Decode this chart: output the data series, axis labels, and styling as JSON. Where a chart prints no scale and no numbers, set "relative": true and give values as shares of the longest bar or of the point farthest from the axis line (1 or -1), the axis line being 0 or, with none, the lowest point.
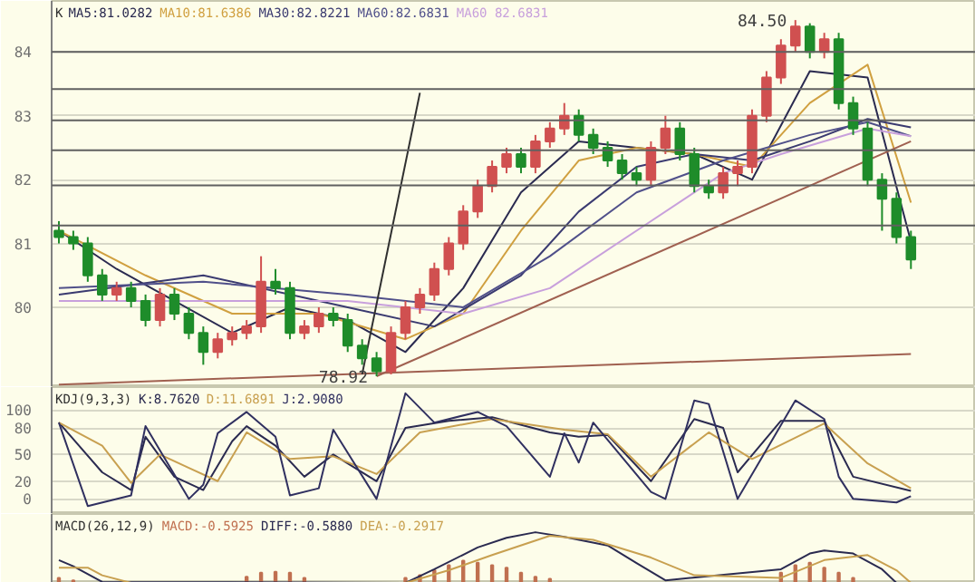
{
  "chart_data": [
    {
      "type": "candlestick",
      "title": "K",
      "categories": [
        null,
        null,
        null,
        null,
        null,
        null,
        null,
        null,
        null,
        null,
        null,
        null,
        null,
        null,
        null,
        null,
        null,
        null,
        null,
        null,
        null,
        null,
        null,
        null,
        null,
        null,
        null,
        null,
        null,
        null,
        null,
        null,
        null,
        null,
        null,
        null,
        null,
        null,
        null,
        null,
        null,
        null,
        null,
        null,
        null,
        null,
        null,
        null,
        null,
        null,
        null,
        null,
        null,
        null,
        null,
        null,
        null,
        null,
        null,
        null
      ],
      "ohlc": [
        [
          81.2,
          81.35,
          81.0,
          81.1
        ],
        [
          81.1,
          81.2,
          80.9,
          81.0
        ],
        [
          81.0,
          81.1,
          80.4,
          80.5
        ],
        [
          80.5,
          80.6,
          80.1,
          80.2
        ],
        [
          80.2,
          80.4,
          80.1,
          80.3
        ],
        [
          80.3,
          80.4,
          80.0,
          80.1
        ],
        [
          80.1,
          80.2,
          79.7,
          79.8
        ],
        [
          79.8,
          80.3,
          79.7,
          80.2
        ],
        [
          80.2,
          80.3,
          79.8,
          79.9
        ],
        [
          79.9,
          80.0,
          79.5,
          79.6
        ],
        [
          79.6,
          79.7,
          79.1,
          79.3
        ],
        [
          79.3,
          79.6,
          79.2,
          79.5
        ],
        [
          79.5,
          79.7,
          79.4,
          79.6
        ],
        [
          79.6,
          79.8,
          79.5,
          79.7
        ],
        [
          79.7,
          80.8,
          79.6,
          80.4
        ],
        [
          80.4,
          80.6,
          80.2,
          80.3
        ],
        [
          80.3,
          80.4,
          79.5,
          79.6
        ],
        [
          79.6,
          79.8,
          79.5,
          79.7
        ],
        [
          79.7,
          80.0,
          79.6,
          79.9
        ],
        [
          79.9,
          80.0,
          79.7,
          79.8
        ],
        [
          79.8,
          79.9,
          79.3,
          79.4
        ],
        [
          79.4,
          79.5,
          79.1,
          79.2
        ],
        [
          79.2,
          79.3,
          78.92,
          79.0
        ],
        [
          79.0,
          79.7,
          78.95,
          79.6
        ],
        [
          79.6,
          80.1,
          79.5,
          80.0
        ],
        [
          80.0,
          80.3,
          79.9,
          80.2
        ],
        [
          80.2,
          80.7,
          80.1,
          80.6
        ],
        [
          80.6,
          81.1,
          80.5,
          81.0
        ],
        [
          81.0,
          81.6,
          80.9,
          81.5
        ],
        [
          81.5,
          82.0,
          81.4,
          81.9
        ],
        [
          81.9,
          82.3,
          81.8,
          82.2
        ],
        [
          82.2,
          82.5,
          82.1,
          82.4
        ],
        [
          82.4,
          82.5,
          82.1,
          82.2
        ],
        [
          82.2,
          82.7,
          82.1,
          82.6
        ],
        [
          82.6,
          82.9,
          82.5,
          82.8
        ],
        [
          82.8,
          83.2,
          82.7,
          83.0
        ],
        [
          83.0,
          83.1,
          82.6,
          82.7
        ],
        [
          82.7,
          82.8,
          82.4,
          82.5
        ],
        [
          82.5,
          82.6,
          82.2,
          82.3
        ],
        [
          82.3,
          82.4,
          82.0,
          82.1
        ],
        [
          82.1,
          82.2,
          81.9,
          82.0
        ],
        [
          82.0,
          82.6,
          81.9,
          82.5
        ],
        [
          82.5,
          83.0,
          82.4,
          82.8
        ],
        [
          82.8,
          82.9,
          82.3,
          82.4
        ],
        [
          82.4,
          82.5,
          81.8,
          81.9
        ],
        [
          81.9,
          82.0,
          81.7,
          81.8
        ],
        [
          81.8,
          82.2,
          81.7,
          82.1
        ],
        [
          82.1,
          82.3,
          81.9,
          82.2
        ],
        [
          82.2,
          83.1,
          82.1,
          83.0
        ],
        [
          83.0,
          83.7,
          82.9,
          83.6
        ],
        [
          83.6,
          84.2,
          83.5,
          84.1
        ],
        [
          84.1,
          84.5,
          84.0,
          84.4
        ],
        [
          84.4,
          84.45,
          83.9,
          84.0
        ],
        [
          84.0,
          84.3,
          83.9,
          84.2
        ],
        [
          84.2,
          84.3,
          83.1,
          83.2
        ],
        [
          83.2,
          83.3,
          82.7,
          82.8
        ],
        [
          82.8,
          82.9,
          81.9,
          82.0
        ],
        [
          82.0,
          82.1,
          81.2,
          81.7
        ],
        [
          81.7,
          81.8,
          81.0,
          81.1
        ],
        [
          81.1,
          81.2,
          80.6,
          80.75
        ]
      ],
      "colors": [
        "#1e8c2a",
        "#1e8c2a",
        "#1e8c2a",
        "#1e8c2a",
        "#d05050",
        "#1e8c2a",
        "#1e8c2a",
        "#d05050",
        "#1e8c2a",
        "#1e8c2a",
        "#1e8c2a",
        "#d05050",
        "#d05050",
        "#d05050",
        "#d05050",
        "#1e8c2a",
        "#1e8c2a",
        "#d05050",
        "#d05050",
        "#1e8c2a",
        "#1e8c2a",
        "#1e8c2a",
        "#1e8c2a",
        "#d05050",
        "#d05050",
        "#d05050",
        "#d05050",
        "#d05050",
        "#d05050",
        "#d05050",
        "#d05050",
        "#d05050",
        "#1e8c2a",
        "#d05050",
        "#d05050",
        "#d05050",
        "#1e8c2a",
        "#1e8c2a",
        "#1e8c2a",
        "#1e8c2a",
        "#1e8c2a",
        "#d05050",
        "#d05050",
        "#1e8c2a",
        "#1e8c2a",
        "#1e8c2a",
        "#d05050",
        "#d05050",
        "#d05050",
        "#d05050",
        "#d05050",
        "#d05050",
        "#1e8c2a",
        "#d05050",
        "#1e8c2a",
        "#1e8c2a",
        "#1e8c2a",
        "#1e8c2a",
        "#1e8c2a",
        "#1e8c2a"
      ],
      "series": [
        {
          "type": "line",
          "name": "MA5:81.0282",
          "color": "#2a2a50",
          "values": [
            81.2,
            null,
            null,
            null,
            80.6,
            null,
            null,
            null,
            80.1,
            null,
            null,
            null,
            79.6,
            null,
            null,
            null,
            80.0,
            null,
            null,
            null,
            79.8,
            null,
            null,
            null,
            79.3,
            null,
            null,
            null,
            80.3,
            null,
            null,
            null,
            81.8,
            null,
            null,
            null,
            82.6,
            null,
            null,
            null,
            82.5,
            null,
            null,
            null,
            82.4,
            null,
            null,
            null,
            82.0,
            null,
            null,
            null,
            83.7,
            null,
            null,
            null,
            83.6,
            null,
            null,
            81.03
          ]
        },
        {
          "type": "line",
          "name": "MA10:81.6386",
          "color": "#d0a040",
          "values": [
            81.2,
            null,
            null,
            null,
            null,
            null,
            80.5,
            null,
            null,
            null,
            null,
            null,
            79.9,
            null,
            null,
            null,
            null,
            null,
            79.9,
            null,
            null,
            null,
            null,
            null,
            79.5,
            null,
            null,
            null,
            79.9,
            null,
            null,
            null,
            81.2,
            null,
            null,
            null,
            82.3,
            null,
            null,
            null,
            82.5,
            null,
            null,
            null,
            82.4,
            null,
            null,
            null,
            82.2,
            null,
            null,
            null,
            83.2,
            null,
            null,
            null,
            83.8,
            null,
            null,
            81.64
          ]
        },
        {
          "type": "line",
          "name": "MA30:82.8221",
          "color": "#3a3a70",
          "values": [
            80.2,
            null,
            null,
            null,
            null,
            null,
            null,
            null,
            null,
            null,
            80.5,
            null,
            null,
            null,
            null,
            null,
            null,
            null,
            null,
            null,
            80.0,
            null,
            null,
            null,
            null,
            null,
            79.7,
            null,
            null,
            null,
            null,
            null,
            80.5,
            null,
            null,
            null,
            81.5,
            null,
            null,
            null,
            82.2,
            null,
            null,
            null,
            82.4,
            null,
            null,
            null,
            82.3,
            null,
            null,
            null,
            82.6,
            null,
            null,
            null,
            82.95,
            null,
            null,
            82.82
          ]
        },
        {
          "type": "line",
          "name": "MA60:82.6831",
          "color": "#50508a",
          "values": [
            80.3,
            null,
            null,
            null,
            null,
            null,
            null,
            null,
            null,
            null,
            80.4,
            null,
            null,
            null,
            null,
            null,
            null,
            null,
            null,
            null,
            80.2,
            null,
            null,
            null,
            null,
            null,
            null,
            null,
            80.0,
            null,
            null,
            null,
            null,
            null,
            80.8,
            null,
            null,
            null,
            null,
            null,
            81.8,
            null,
            null,
            null,
            null,
            null,
            82.3,
            null,
            null,
            null,
            null,
            null,
            82.7,
            null,
            null,
            null,
            82.9,
            null,
            null,
            82.68
          ]
        },
        {
          "type": "line",
          "name": "MA60 82.6831",
          "color": "#c8a0dc",
          "values": [
            80.1,
            null,
            null,
            null,
            null,
            null,
            null,
            null,
            null,
            null,
            80.1,
            null,
            null,
            null,
            null,
            null,
            null,
            null,
            null,
            null,
            80.1,
            null,
            null,
            null,
            null,
            null,
            null,
            null,
            79.9,
            null,
            null,
            null,
            null,
            null,
            80.3,
            null,
            null,
            null,
            null,
            null,
            81.2,
            null,
            null,
            null,
            null,
            null,
            82.1,
            null,
            null,
            null,
            82.4,
            null,
            null,
            null,
            null,
            null,
            82.8,
            null,
            null,
            82.68
          ]
        },
        {
          "type": "line",
          "color": "#a06050",
          "values": [
            null,
            null,
            null,
            null,
            null,
            null,
            null,
            null,
            null,
            null,
            null,
            null,
            null,
            null,
            null,
            null,
            null,
            null,
            null,
            null,
            null,
            null,
            78.92,
            null,
            null,
            null,
            null,
            null,
            null,
            null,
            null,
            null,
            null,
            null,
            null,
            null,
            null,
            null,
            null,
            null,
            null,
            null,
            null,
            null,
            null,
            null,
            null,
            null,
            null,
            null,
            null,
            null,
            null,
            null,
            null,
            null,
            null,
            null,
            null,
            82.6
          ]
        },
        {
          "type": "line",
          "color": "#a06050",
          "values": [
            78.79,
            null,
            null,
            null,
            null,
            null,
            null,
            null,
            null,
            null,
            null,
            null,
            null,
            null,
            null,
            null,
            null,
            null,
            null,
            null,
            null,
            null,
            null,
            null,
            null,
            null,
            null,
            null,
            null,
            null,
            null,
            null,
            null,
            null,
            null,
            null,
            null,
            null,
            null,
            null,
            null,
            null,
            null,
            null,
            null,
            null,
            null,
            null,
            null,
            null,
            null,
            null,
            null,
            null,
            null,
            null,
            null,
            null,
            null,
            79.27
          ]
        },
        {
          "type": "line",
          "color": "#303030",
          "values": [
            null,
            null,
            null,
            null,
            null,
            null,
            null,
            null,
            null,
            null,
            null,
            null,
            null,
            null,
            null,
            null,
            null,
            null,
            null,
            null,
            null,
            78.95,
            null,
            null,
            null,
            83.36,
            null,
            null,
            null,
            null,
            null,
            null,
            null,
            null,
            null,
            null,
            null,
            null,
            null,
            null,
            null,
            null,
            null,
            null,
            null,
            null,
            null,
            null,
            null,
            null,
            null,
            null,
            null,
            null,
            null,
            null,
            null,
            null,
            null,
            null
          ]
        }
      ],
      "ylim": [
        78.75,
        84.8
      ],
      "yticks": [
        80,
        81,
        82,
        83,
        84
      ],
      "grid": "y",
      "legend": "top left",
      "tick_labels": "y",
      "ref_lines": [
        {
          "axis": "y",
          "value": 84.0,
          "color": "#606060"
        },
        {
          "axis": "y",
          "value": 83.42,
          "color": "#606060"
        },
        {
          "axis": "y",
          "value": 82.93,
          "color": "#606060"
        },
        {
          "axis": "y",
          "value": 82.46,
          "color": "#606060"
        },
        {
          "axis": "y",
          "value": 81.91,
          "color": "#606060"
        },
        {
          "axis": "y",
          "value": 81.28,
          "color": "#606060"
        }
      ],
      "annotations": [
        "84.50",
        "78.92"
      ]
    },
    {
      "type": "line",
      "title": "KDJ(9,3,3)",
      "categories": [
        null,
        null,
        null,
        null,
        null,
        null,
        null,
        null,
        null,
        null,
        null,
        null,
        null,
        null,
        null,
        null,
        null,
        null,
        null,
        null,
        null,
        null,
        null,
        null,
        null,
        null,
        null,
        null,
        null,
        null,
        null,
        null,
        null,
        null,
        null,
        null,
        null,
        null,
        null,
        null,
        null,
        null,
        null,
        null,
        null,
        null,
        null,
        null,
        null,
        null,
        null,
        null,
        null,
        null,
        null,
        null,
        null,
        null,
        null,
        null
      ],
      "series": [
        {
          "name": "K:8.7620",
          "color": "#2a2a50",
          "values": [
            86,
            null,
            null,
            30,
            null,
            10,
            70,
            null,
            25,
            null,
            10,
            null,
            65,
            82,
            null,
            60,
            null,
            25,
            null,
            50,
            null,
            null,
            20,
            null,
            80,
            null,
            null,
            88,
            null,
            null,
            92,
            null,
            null,
            null,
            75,
            null,
            70,
            null,
            72,
            null,
            null,
            20,
            null,
            null,
            90,
            null,
            80,
            30,
            null,
            null,
            88,
            null,
            null,
            88,
            null,
            25,
            null,
            null,
            null,
            9
          ]
        },
        {
          "name": "D:11.6891",
          "color": "#c8a050",
          "values": [
            86,
            null,
            null,
            60,
            null,
            18,
            null,
            50,
            null,
            35,
            null,
            20,
            null,
            75,
            null,
            null,
            45,
            null,
            null,
            48,
            null,
            null,
            28,
            null,
            null,
            75,
            null,
            null,
            null,
            null,
            90,
            null,
            null,
            null,
            null,
            78,
            null,
            null,
            73,
            null,
            null,
            25,
            null,
            null,
            null,
            75,
            null,
            null,
            45,
            null,
            null,
            null,
            null,
            85,
            null,
            null,
            40,
            null,
            null,
            12
          ]
        },
        {
          "name": "J:2.9080",
          "color": "#303060",
          "values": [
            86,
            null,
            -8,
            null,
            null,
            4,
            82,
            null,
            null,
            0,
            16,
            74,
            null,
            98,
            null,
            70,
            4,
            null,
            12,
            78,
            null,
            null,
            0,
            null,
            119,
            null,
            86,
            null,
            null,
            98,
            null,
            82,
            null,
            null,
            25,
            74,
            41,
            86,
            null,
            null,
            null,
            8,
            0,
            null,
            111,
            107,
            null,
            0,
            null,
            null,
            null,
            111,
            null,
            90,
            25,
            0,
            null,
            null,
            -4,
            3
          ]
        }
      ],
      "ylim": [
        -17,
        126
      ],
      "yticks": [
        0,
        20,
        50,
        80,
        100
      ],
      "grid": "y",
      "legend": "top left",
      "tick_labels": "y"
    },
    {
      "type": "line",
      "title": "MACD(26,12,9)",
      "relative": true,
      "categories": [
        null,
        null,
        null,
        null,
        null,
        null,
        null,
        null,
        null,
        null,
        null,
        null,
        null,
        null,
        null,
        null,
        null,
        null,
        null,
        null,
        null,
        null,
        null,
        null,
        null,
        null,
        null,
        null,
        null,
        null,
        null,
        null,
        null,
        null,
        null,
        null,
        null,
        null,
        null,
        null,
        null,
        null,
        null,
        null,
        null,
        null,
        null,
        null,
        null,
        null,
        null,
        null,
        null,
        null,
        null,
        null,
        null,
        null,
        null,
        null
      ],
      "series": [
        {
          "type": "bar",
          "name": "MACD:-0.5925",
          "color": "#c07050",
          "values": [
            0.1,
            0.05,
            null,
            null,
            null,
            null,
            null,
            null,
            null,
            null,
            null,
            null,
            null,
            0.12,
            0.2,
            0.22,
            0.2,
            0.1,
            null,
            null,
            null,
            null,
            null,
            null,
            0.1,
            0.15,
            0.25,
            0.35,
            0.44,
            0.4,
            0.35,
            0.3,
            0.2,
            0.12,
            0.08,
            null,
            null,
            null,
            null,
            null,
            null,
            null,
            null,
            null,
            null,
            null,
            null,
            null,
            null,
            null,
            0.2,
            0.35,
            0.4,
            0.3,
            0.2,
            0.1,
            null,
            null,
            null,
            null
          ]
        },
        {
          "type": "line",
          "name": "DIFF:-0.5880",
          "color": "#2a2a50",
          "values": [
            0.45,
            0.33,
            null,
            0.02,
            null,
            null,
            null,
            null,
            null,
            null,
            null,
            null,
            null,
            null,
            null,
            null,
            null,
            null,
            null,
            null,
            null,
            null,
            null,
            null,
            0,
            null,
            0.27,
            null,
            null,
            0.7,
            null,
            0.89,
            null,
            1.0,
            null,
            0.91,
            null,
            null,
            0.74,
            null,
            0.39,
            null,
            0.05,
            null,
            null,
            null,
            null,
            null,
            null,
            null,
            0.27,
            null,
            0.58,
            0.64,
            null,
            0.58,
            null,
            0.27,
            0,
            null
          ]
        },
        {
          "type": "line",
          "name": "DEA:-0.2917",
          "color": "#c8a050",
          "values": [
            0.3,
            null,
            0.3,
            0.15,
            null,
            0,
            null,
            null,
            null,
            null,
            null,
            null,
            null,
            null,
            null,
            null,
            null,
            null,
            null,
            null,
            null,
            null,
            null,
            null,
            0,
            null,
            null,
            0.25,
            null,
            null,
            0.55,
            null,
            null,
            null,
            0.93,
            null,
            null,
            0.85,
            null,
            null,
            null,
            0.5,
            null,
            null,
            0.15,
            null,
            null,
            null,
            null,
            null,
            0.1,
            null,
            null,
            0.45,
            null,
            null,
            0.55,
            null,
            0.25,
            0
          ]
        }
      ],
      "legend": "top left",
      "tick_labels": false
    }
  ]
}
